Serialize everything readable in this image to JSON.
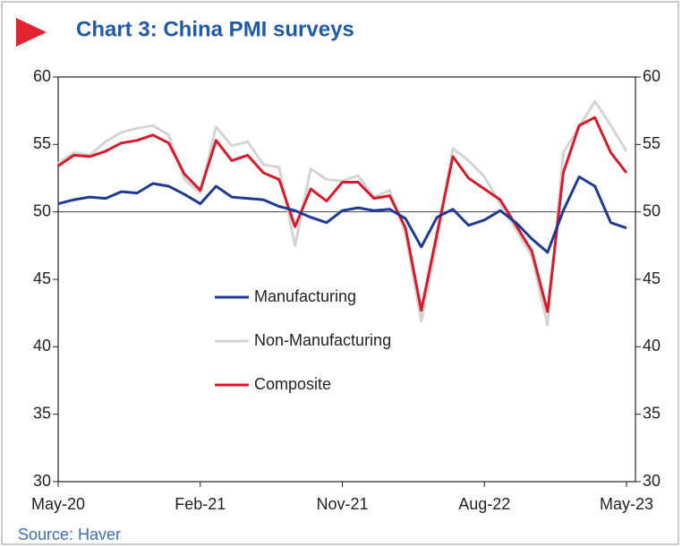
{
  "chart_data": {
    "type": "line",
    "title": "Chart 3: China PMI surveys",
    "source": "Source: Haver",
    "categories": [
      "May-20",
      null,
      null,
      null,
      null,
      null,
      null,
      null,
      null,
      "Feb-21",
      null,
      null,
      null,
      null,
      null,
      null,
      null,
      null,
      "Nov-21",
      null,
      null,
      null,
      null,
      null,
      null,
      null,
      null,
      "Aug-22",
      null,
      null,
      null,
      null,
      null,
      null,
      null,
      null,
      "May-23"
    ],
    "series": [
      {
        "name": "Manufacturing",
        "color": "#1f3a93",
        "values": [
          50.6,
          50.9,
          51.1,
          51.0,
          51.5,
          51.4,
          52.1,
          51.9,
          51.3,
          50.6,
          51.9,
          51.1,
          51.0,
          50.9,
          50.4,
          50.1,
          49.6,
          49.2,
          50.1,
          50.3,
          50.1,
          50.2,
          49.5,
          47.4,
          49.6,
          50.2,
          49.0,
          49.4,
          50.1,
          49.2,
          48.0,
          47.0,
          50.1,
          52.6,
          51.9,
          49.2,
          48.8
        ]
      },
      {
        "name": "Non-Manufacturing",
        "color": "#d4d4d4",
        "values": [
          53.6,
          54.4,
          54.2,
          55.2,
          55.9,
          56.2,
          56.4,
          55.7,
          52.4,
          51.4,
          56.3,
          54.9,
          55.2,
          53.5,
          53.3,
          47.5,
          53.2,
          52.4,
          52.3,
          52.7,
          51.1,
          51.6,
          48.4,
          41.9,
          47.8,
          54.7,
          53.8,
          52.6,
          50.6,
          48.7,
          46.7,
          41.6,
          54.4,
          56.3,
          58.2,
          56.4,
          54.5
        ]
      },
      {
        "name": "Composite",
        "color": "#d7192a",
        "values": [
          53.4,
          54.2,
          54.1,
          54.5,
          55.1,
          55.3,
          55.7,
          55.1,
          52.8,
          51.6,
          55.3,
          53.8,
          54.2,
          52.9,
          52.4,
          48.9,
          51.7,
          50.8,
          52.2,
          52.2,
          51.0,
          51.2,
          48.8,
          42.7,
          48.4,
          54.1,
          52.5,
          51.7,
          50.9,
          49.0,
          47.1,
          42.6,
          52.9,
          56.4,
          57.0,
          54.4,
          52.9
        ]
      }
    ],
    "reference_line": 50,
    "ylim": [
      30,
      60
    ],
    "yticks": [
      30,
      35,
      40,
      45,
      50,
      55,
      60
    ],
    "y2lim": [
      30,
      60
    ],
    "y2ticks": [
      30,
      35,
      40,
      45,
      50,
      55,
      60
    ]
  }
}
